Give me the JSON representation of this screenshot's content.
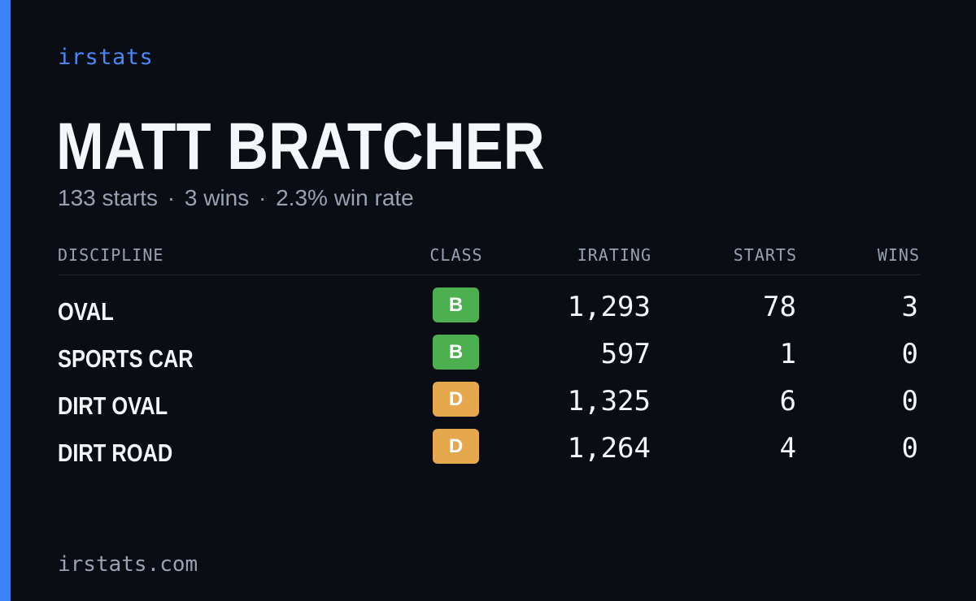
{
  "brand": "irstats",
  "driver": {
    "name": "MATT BRATCHER",
    "summary_starts": "133 starts",
    "summary_wins": "3 wins",
    "summary_rate": "2.3% win rate",
    "separator": "·"
  },
  "table": {
    "headers": {
      "discipline": "DISCIPLINE",
      "class": "CLASS",
      "irating": "IRATING",
      "starts": "STARTS",
      "wins": "WINS"
    },
    "rows": [
      {
        "discipline": "OVAL",
        "class": "B",
        "class_color": "#4caf50",
        "irating": "1,293",
        "starts": "78",
        "wins": "3"
      },
      {
        "discipline": "SPORTS CAR",
        "class": "B",
        "class_color": "#4caf50",
        "irating": "597",
        "starts": "1",
        "wins": "0"
      },
      {
        "discipline": "DIRT OVAL",
        "class": "D",
        "class_color": "#e6a84c",
        "irating": "1,325",
        "starts": "6",
        "wins": "0"
      },
      {
        "discipline": "DIRT ROAD",
        "class": "D",
        "class_color": "#e6a84c",
        "irating": "1,264",
        "starts": "4",
        "wins": "0"
      }
    ]
  },
  "footer": "irstats.com",
  "colors": {
    "background": "#0a0d14",
    "accent": "#3b82f6",
    "class_b": "#4caf50",
    "class_d": "#e6a84c"
  }
}
